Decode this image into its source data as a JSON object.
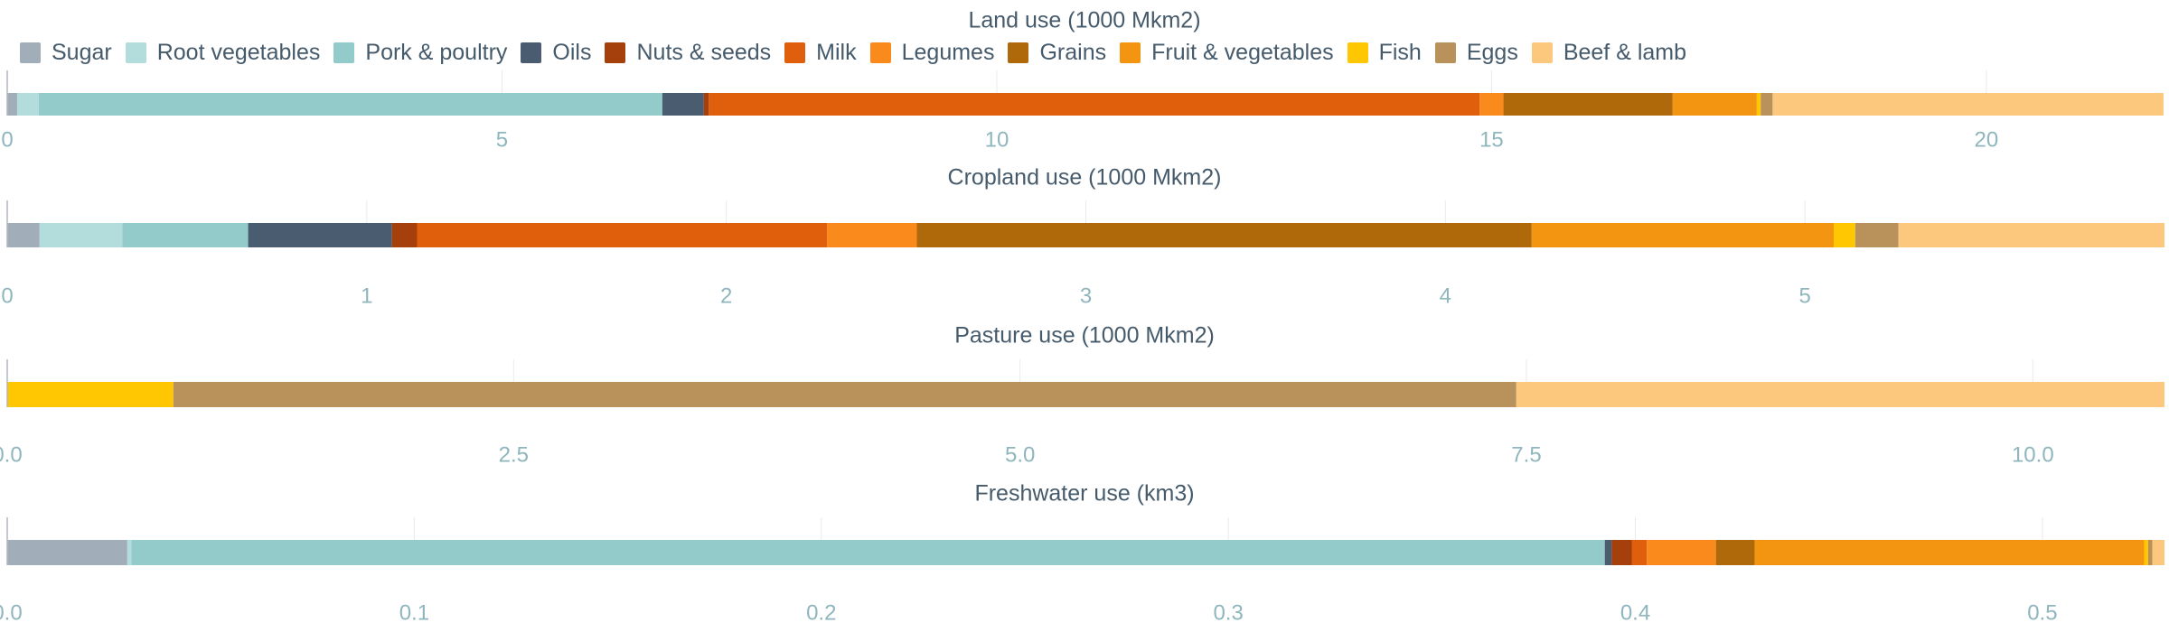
{
  "legend": [
    {
      "name": "Sugar",
      "color": "#a2adba"
    },
    {
      "name": "Root vegetables",
      "color": "#b3dcdc"
    },
    {
      "name": "Pork & poultry",
      "color": "#93cbcb"
    },
    {
      "name": "Oils",
      "color": "#4a5d70"
    },
    {
      "name": "Nuts & seeds",
      "color": "#a53f0b"
    },
    {
      "name": "Milk",
      "color": "#e05f0d"
    },
    {
      "name": "Legumes",
      "color": "#fb8a1c"
    },
    {
      "name": "Grains",
      "color": "#b0690a"
    },
    {
      "name": "Fruit & vegetables",
      "color": "#f39510"
    },
    {
      "name": "Fish",
      "color": "#ffc702"
    },
    {
      "name": "Eggs",
      "color": "#b9915b"
    },
    {
      "name": "Beef & lamb",
      "color": "#fcc87d"
    }
  ],
  "chart_data": [
    {
      "type": "bar",
      "orientation": "horizontal",
      "stacked": true,
      "title": "Land use (1000 Mkm2)",
      "xlim": [
        0,
        21.8
      ],
      "ticks": [
        0,
        5,
        10,
        15,
        20
      ],
      "tick_labels": [
        "0",
        "5",
        "10",
        "15",
        "20"
      ],
      "series": [
        {
          "name": "Sugar",
          "value": 0.1
        },
        {
          "name": "Root vegetables",
          "value": 0.22
        },
        {
          "name": "Pork & poultry",
          "value": 6.3
        },
        {
          "name": "Oils",
          "value": 0.42
        },
        {
          "name": "Nuts & seeds",
          "value": 0.05
        },
        {
          "name": "Milk",
          "value": 7.79
        },
        {
          "name": "Legumes",
          "value": 0.24
        },
        {
          "name": "Grains",
          "value": 1.71
        },
        {
          "name": "Fruit & vegetables",
          "value": 0.85
        },
        {
          "name": "Fish",
          "value": 0.04
        },
        {
          "name": "Eggs",
          "value": 0.12
        },
        {
          "name": "Beef & lamb",
          "value": 3.95
        }
      ]
    },
    {
      "type": "bar",
      "orientation": "horizontal",
      "stacked": true,
      "title": "Cropland use (1000 Mkm2)",
      "xlim": [
        0,
        6.0
      ],
      "ticks": [
        0,
        1,
        2,
        3,
        4,
        5
      ],
      "tick_labels": [
        "0",
        "1",
        "2",
        "3",
        "4",
        "5"
      ],
      "series": [
        {
          "name": "Sugar",
          "value": 0.09
        },
        {
          "name": "Root vegetables",
          "value": 0.23
        },
        {
          "name": "Pork & poultry",
          "value": 0.35
        },
        {
          "name": "Oils",
          "value": 0.4
        },
        {
          "name": "Nuts & seeds",
          "value": 0.07
        },
        {
          "name": "Milk",
          "value": 1.14
        },
        {
          "name": "Legumes",
          "value": 0.25
        },
        {
          "name": "Grains",
          "value": 1.71
        },
        {
          "name": "Fruit & vegetables",
          "value": 0.84
        },
        {
          "name": "Fish",
          "value": 0.06
        },
        {
          "name": "Eggs",
          "value": 0.12
        },
        {
          "name": "Beef & lamb",
          "value": 0.74
        }
      ]
    },
    {
      "type": "bar",
      "orientation": "horizontal",
      "stacked": true,
      "title": "Pasture use (1000 Mkm2)",
      "xlim": [
        0,
        10.65
      ],
      "ticks": [
        0,
        2.5,
        5,
        7.5,
        10
      ],
      "tick_labels": [
        "0.0",
        "2.5",
        "5.0",
        "7.5",
        "10.0"
      ],
      "series": [
        {
          "name": "Fish",
          "value": 0.82
        },
        {
          "name": "Eggs",
          "value": 6.63
        },
        {
          "name": "Beef & lamb",
          "value": 3.2
        }
      ]
    },
    {
      "type": "bar",
      "orientation": "horizontal",
      "stacked": true,
      "title": "Freshwater use (km3)",
      "xlim": [
        0,
        0.53
      ],
      "ticks": [
        0,
        0.1,
        0.2,
        0.3,
        0.4,
        0.5
      ],
      "tick_labels": [
        "0.0",
        "0.1",
        "0.2",
        "0.3",
        "0.4",
        "0.5"
      ],
      "series": [
        {
          "name": "Sugar",
          "value": 0.0295
        },
        {
          "name": "Root vegetables",
          "value": 0.001
        },
        {
          "name": "Pork & poultry",
          "value": 0.362
        },
        {
          "name": "Oils",
          "value": 0.0017
        },
        {
          "name": "Nuts & seeds",
          "value": 0.005
        },
        {
          "name": "Milk",
          "value": 0.0036
        },
        {
          "name": "Legumes",
          "value": 0.017
        },
        {
          "name": "Grains",
          "value": 0.0095
        },
        {
          "name": "Fruit & vegetables",
          "value": 0.0957
        },
        {
          "name": "Fish",
          "value": 0.001
        },
        {
          "name": "Eggs",
          "value": 0.001
        },
        {
          "name": "Beef & lamb",
          "value": 0.003
        }
      ]
    }
  ]
}
